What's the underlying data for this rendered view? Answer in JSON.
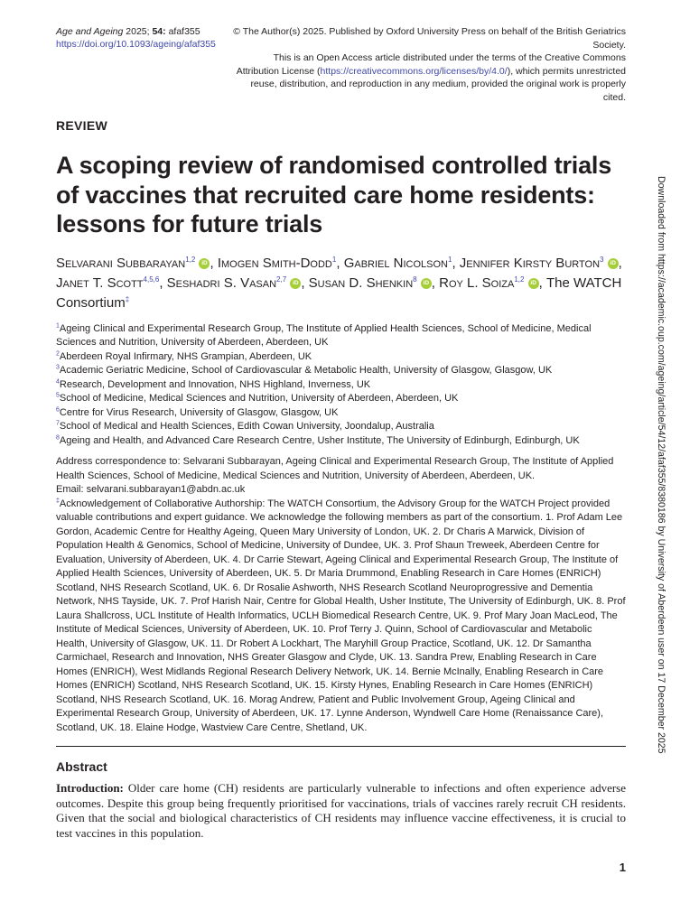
{
  "header": {
    "journal": "Age and Ageing",
    "year_volume": "2025;",
    "volume": "54:",
    "article_id": "afaf355",
    "doi": "https://doi.org/10.1093/ageing/afaf355",
    "copyright": "© The Author(s) 2025. Published by Oxford University Press on behalf of the British Geriatrics Society.",
    "license_pre": "This is an Open Access article distributed under the terms of the Creative Commons Attribution License (",
    "license_url": "https://creativecommons.org/licenses/by/4.0/",
    "license_post": "), which permits unrestricted reuse, distribution, and reproduction in any medium, provided the original work is properly cited."
  },
  "article_type": "REVIEW",
  "title": "A scoping review of randomised controlled trials of vaccines that recruited care home residents: lessons for future trials",
  "authors": [
    {
      "name": "Selvarani Subbarayan",
      "sup": "1,2",
      "orcid": true
    },
    {
      "name": "Imogen Smith-Dodd",
      "sup": "1",
      "orcid": false
    },
    {
      "name": "Gabriel Nicolson",
      "sup": "1",
      "orcid": false
    },
    {
      "name": "Jennifer Kirsty Burton",
      "sup": "3",
      "orcid": true
    },
    {
      "name": "Janet T. Scott",
      "sup": "4,5,6",
      "orcid": false
    },
    {
      "name": "Seshadri S. Vasan",
      "sup": "2,7",
      "orcid": true
    },
    {
      "name": "Susan D. Shenkin",
      "sup": "8",
      "orcid": true
    },
    {
      "name": "Roy L. Soiza",
      "sup": "1,2",
      "orcid": true
    }
  ],
  "consortium": "The WATCH Consortium",
  "consortium_sup": "‡",
  "orcid_label": "iD",
  "affiliations": [
    {
      "n": "1",
      "text": "Ageing Clinical and Experimental Research Group, The Institute of Applied Health Sciences, School of Medicine, Medical Sciences and Nutrition, University of Aberdeen, Aberdeen, UK"
    },
    {
      "n": "2",
      "text": "Aberdeen Royal Infirmary, NHS Grampian, Aberdeen, UK"
    },
    {
      "n": "3",
      "text": "Academic Geriatric Medicine, School of Cardiovascular & Metabolic Health, University of Glasgow, Glasgow, UK"
    },
    {
      "n": "4",
      "text": "Research, Development and Innovation, NHS Highland, Inverness, UK"
    },
    {
      "n": "5",
      "text": "School of Medicine, Medical Sciences and Nutrition, University of Aberdeen, Aberdeen, UK"
    },
    {
      "n": "6",
      "text": "Centre for Virus Research, University of Glasgow, Glasgow, UK"
    },
    {
      "n": "7",
      "text": "School of Medical and Health Sciences, Edith Cowan University, Joondalup, Australia"
    },
    {
      "n": "8",
      "text": "Ageing and Health, and Advanced Care Research Centre, Usher Institute, The University of Edinburgh, Edinburgh, UK"
    }
  ],
  "correspondence": "Address correspondence to: Selvarani Subbarayan, Ageing Clinical and Experimental Research Group, The Institute of Applied Health Sciences, School of Medicine, Medical Sciences and Nutrition, University of Aberdeen, Aberdeen, UK.",
  "email": "Email: selvarani.subbarayan1@abdn.ac.uk",
  "acknowledgement_mark": "‡",
  "acknowledgement": "Acknowledgement of Collaborative Authorship: The WATCH Consortium, the Advisory Group for the WATCH Project provided valuable contributions and expert guidance. We acknowledge the following members as part of the consortium. 1. Prof Adam Lee Gordon, Academic Centre for Healthy Ageing, Queen Mary University of London, UK. 2. Dr Charis A Marwick, Division of Population Health & Genomics, School of Medicine, University of Dundee, UK. 3. Prof Shaun Treweek, Aberdeen Centre for Evaluation, University of Aberdeen, UK. 4. Dr Carrie Stewart, Ageing Clinical and Experimental Research Group, The Institute of Applied Health Sciences, University of Aberdeen, UK. 5. Dr Maria Drummond, Enabling Research in Care Homes (ENRICH) Scotland, NHS Research Scotland, UK. 6. Dr Rosalie Ashworth, NHS Research Scotland Neuroprogressive and Dementia Network, NHS Tayside, UK. 7. Prof Harish Nair, Centre for Global Health, Usher Institute, The University of Edinburgh, UK. 8. Prof Laura Shallcross, UCL Institute of Health Informatics, UCLH Biomedical Research Centre, UK. 9. Prof Mary Joan MacLeod, The Institute of Medical Sciences, University of Aberdeen, UK. 10. Prof Terry J. Quinn, School of Cardiovascular and Metabolic Health, University of Glasgow, UK. 11. Dr Robert A Lockhart, The Maryhill Group Practice, Scotland, UK. 12. Dr Samantha Carmichael, Research and Innovation, NHS Greater Glasgow and Clyde, UK. 13. Sandra Prew, Enabling Research in Care Homes (ENRICH), West Midlands Regional Research Delivery Network, UK. 14. Bernie McInally, Enabling Research in Care Homes (ENRICH) Scotland, NHS Research Scotland, UK. 15. Kirsty Hynes, Enabling Research in Care Homes (ENRICH) Scotland, NHS Research Scotland, UK. 16. Morag Andrew, Patient and Public Involvement Group, Ageing Clinical and Experimental Research Group, University of Aberdeen, UK. 17. Lynne Anderson, Wyndwell Care Home (Renaissance Care), Scotland, UK. 18. Elaine Hodge, Wastview Care Centre, Shetland, UK.",
  "abstract": {
    "heading": "Abstract",
    "intro_label": "Introduction:",
    "intro_text": " Older care home (CH) residents are particularly vulnerable to infections and often experience adverse outcomes. Despite this group being frequently prioritised for vaccinations, trials of vaccines rarely recruit CH residents. Given that the social and biological characteristics of CH residents may influence vaccine effectiveness, it is crucial to test vaccines in this population."
  },
  "page_number": "1",
  "side_note": "Downloaded from https://academic.oup.com/ageing/article/54/12/afaf355/8380186 by University of Aberdeen user on 17 December 2025",
  "colors": {
    "link": "#3f48a8",
    "orcid": "#a6ce39",
    "text": "#231f20"
  }
}
